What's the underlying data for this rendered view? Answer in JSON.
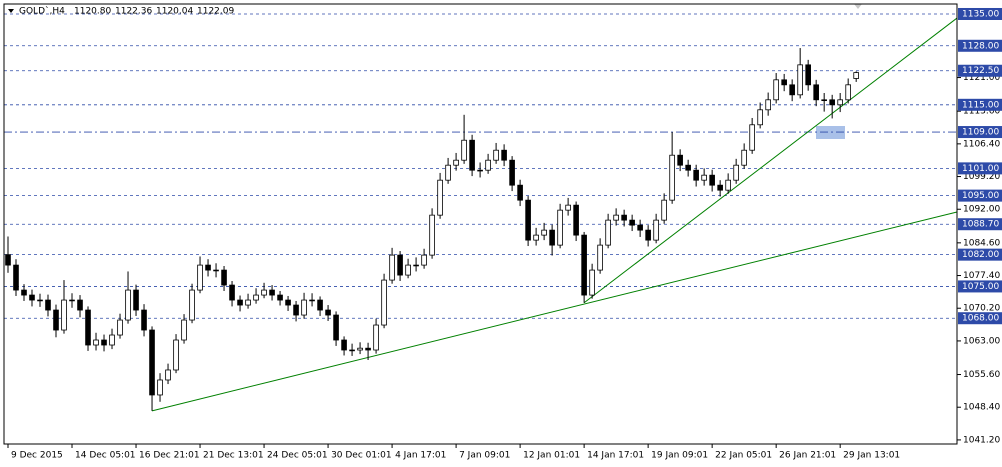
{
  "chart_data": {
    "type": "candlestick",
    "title": "GOLD`,H4",
    "last_labels": [
      "1120.80",
      "1122.36",
      "1120.04",
      "1122.09"
    ],
    "ohlc": {
      "open": [
        1082.0,
        1079.7,
        1074.2,
        1073.1,
        1072.0,
        1072.0,
        1069.8,
        1065.4,
        1072.0,
        1072.0,
        1069.8,
        1062.1,
        1063.2,
        1062.1,
        1064.3,
        1067.6,
        1074.2,
        1069.8,
        1065.4,
        1051.1,
        1054.4,
        1056.6,
        1063.2,
        1067.6,
        1074.2,
        1079.7,
        1078.6,
        1078.6,
        1075.3,
        1072.0,
        1070.9,
        1072.0,
        1073.1,
        1074.2,
        1073.1,
        1072.0,
        1070.9,
        1068.7,
        1072.0,
        1072.0,
        1069.8,
        1068.7,
        1063.2,
        1061.0,
        1061.0,
        1061.4,
        1061.0,
        1066.5,
        1076.4,
        1081.9,
        1077.5,
        1079.7,
        1079.7,
        1081.9,
        1090.7,
        1098.4,
        1101.7,
        1102.8,
        1107.2,
        1100.6,
        1100.6,
        1102.8,
        1105.0,
        1102.8,
        1097.3,
        1094.0,
        1085.2,
        1086.3,
        1087.4,
        1084.1,
        1091.8,
        1092.9,
        1086.3,
        1073.1,
        1078.6,
        1084.1,
        1089.6,
        1090.7,
        1089.6,
        1088.5,
        1087.4,
        1085.2,
        1089.6,
        1094.0,
        1103.9,
        1101.7,
        1100.6,
        1098.4,
        1099.5,
        1097.3,
        1096.2,
        1098.4,
        1101.7,
        1105.0,
        1110.6,
        1113.9,
        1116.1,
        1120.5,
        1119.4,
        1117.2,
        1123.8,
        1119.4,
        1116.1,
        1116.1,
        1115.0,
        1116.1,
        1120.8
      ],
      "high": [
        1086.0,
        1081.0,
        1075.5,
        1074.3,
        1073.4,
        1073.2,
        1071.0,
        1076.4,
        1073.5,
        1073.1,
        1070.6,
        1064.8,
        1064.4,
        1065.7,
        1069.0,
        1078.3,
        1075.4,
        1071.1,
        1066.2,
        1055.9,
        1058.0,
        1064.5,
        1068.9,
        1075.6,
        1081.6,
        1081.0,
        1080.1,
        1079.5,
        1076.2,
        1073.0,
        1073.4,
        1074.6,
        1075.8,
        1075.3,
        1074.0,
        1072.9,
        1071.8,
        1073.6,
        1073.5,
        1072.8,
        1070.9,
        1069.5,
        1064.0,
        1062.4,
        1062.7,
        1062.6,
        1067.9,
        1077.8,
        1083.5,
        1082.8,
        1081.1,
        1081.4,
        1083.3,
        1092.2,
        1100.0,
        1103.3,
        1104.4,
        1112.8,
        1108.4,
        1102.3,
        1104.2,
        1106.6,
        1106.3,
        1103.7,
        1098.5,
        1094.9,
        1087.9,
        1089.0,
        1088.6,
        1093.2,
        1094.5,
        1093.7,
        1087.0,
        1080.0,
        1085.6,
        1091.0,
        1092.2,
        1091.9,
        1090.8,
        1089.7,
        1088.5,
        1091.0,
        1095.5,
        1109.0,
        1105.2,
        1102.9,
        1101.8,
        1101.0,
        1100.7,
        1098.4,
        1099.9,
        1103.1,
        1106.5,
        1112.1,
        1115.5,
        1117.7,
        1122.0,
        1121.8,
        1120.6,
        1127.5,
        1124.9,
        1120.5,
        1117.6,
        1117.2,
        1117.6,
        1120.8,
        1122.36
      ],
      "low": [
        1078.0,
        1072.9,
        1071.8,
        1070.6,
        1070.5,
        1068.4,
        1063.8,
        1064.6,
        1070.3,
        1068.2,
        1060.8,
        1060.9,
        1060.7,
        1061.2,
        1063.5,
        1066.8,
        1068.5,
        1064.0,
        1047.6,
        1049.6,
        1053.5,
        1055.9,
        1062.4,
        1066.9,
        1073.5,
        1077.2,
        1077.0,
        1074.0,
        1070.6,
        1069.5,
        1070.1,
        1071.2,
        1072.4,
        1071.9,
        1070.8,
        1069.6,
        1067.3,
        1067.9,
        1070.6,
        1068.5,
        1067.4,
        1061.9,
        1059.8,
        1059.7,
        1060.1,
        1058.8,
        1060.2,
        1065.8,
        1075.6,
        1076.2,
        1076.8,
        1078.3,
        1078.9,
        1081.1,
        1089.9,
        1097.6,
        1100.5,
        1102.0,
        1099.3,
        1099.0,
        1099.8,
        1102.0,
        1101.5,
        1096.0,
        1092.7,
        1083.9,
        1084.0,
        1085.2,
        1081.8,
        1083.4,
        1090.6,
        1085.0,
        1071.4,
        1072.3,
        1077.8,
        1083.4,
        1088.4,
        1088.2,
        1087.2,
        1085.9,
        1083.8,
        1084.5,
        1088.8,
        1093.2,
        1100.4,
        1099.2,
        1097.0,
        1097.2,
        1095.9,
        1094.8,
        1095.4,
        1097.6,
        1100.9,
        1104.2,
        1109.8,
        1112.6,
        1115.3,
        1118.0,
        1115.8,
        1116.4,
        1118.1,
        1114.7,
        1113.5,
        1112.0,
        1113.4,
        1115.3,
        1120.04
      ],
      "close": [
        1079.7,
        1074.2,
        1073.1,
        1072.0,
        1072.0,
        1069.8,
        1065.4,
        1072.0,
        1072.0,
        1069.8,
        1062.1,
        1063.2,
        1062.1,
        1064.3,
        1067.6,
        1074.2,
        1069.8,
        1065.4,
        1051.1,
        1054.4,
        1056.6,
        1063.2,
        1067.6,
        1074.2,
        1079.7,
        1078.6,
        1078.6,
        1075.3,
        1072.0,
        1070.9,
        1072.0,
        1073.1,
        1074.2,
        1073.1,
        1072.0,
        1070.9,
        1068.7,
        1072.0,
        1072.0,
        1069.8,
        1068.7,
        1063.2,
        1061.0,
        1061.0,
        1061.4,
        1061.0,
        1066.5,
        1076.4,
        1081.9,
        1077.5,
        1079.7,
        1079.7,
        1081.9,
        1090.7,
        1098.4,
        1101.7,
        1102.8,
        1107.2,
        1100.6,
        1100.6,
        1102.8,
        1105.0,
        1102.8,
        1097.3,
        1094.0,
        1085.2,
        1086.3,
        1087.4,
        1084.1,
        1091.8,
        1092.9,
        1086.3,
        1073.1,
        1078.6,
        1084.1,
        1089.6,
        1090.7,
        1089.6,
        1088.5,
        1087.4,
        1085.2,
        1089.6,
        1094.0,
        1103.9,
        1101.7,
        1100.6,
        1098.4,
        1099.5,
        1097.3,
        1096.2,
        1098.4,
        1101.7,
        1105.0,
        1110.6,
        1113.9,
        1116.1,
        1120.5,
        1119.4,
        1117.2,
        1123.8,
        1119.4,
        1116.1,
        1116.1,
        1115.0,
        1116.1,
        1119.4,
        1122.09
      ]
    },
    "up_color": "#ffffff",
    "down_color": "#000000",
    "line_color": "#000000",
    "xlim": [
      -0.5,
      118.6
    ],
    "xticks": [
      {
        "value": 0,
        "label": "9 Dec 2015"
      },
      {
        "value": 8,
        "label": "14 Dec 05:01"
      },
      {
        "value": 16,
        "label": "16 Dec 21:01"
      },
      {
        "value": 24,
        "label": "21 Dec 13:01"
      },
      {
        "value": 32,
        "label": "24 Dec 05:01"
      },
      {
        "value": 40,
        "label": "30 Dec 01:01"
      },
      {
        "value": 48,
        "label": "4 Jan 17:01"
      },
      {
        "value": 56,
        "label": "7 Jan 09:01"
      },
      {
        "value": 64,
        "label": "12 Jan 01:01"
      },
      {
        "value": 72,
        "label": "14 Jan 17:01"
      },
      {
        "value": 80,
        "label": "19 Jan 09:01"
      },
      {
        "value": 88,
        "label": "22 Jan 05:01"
      },
      {
        "value": 96,
        "label": "26 Jan 21:01"
      },
      {
        "value": 104,
        "label": "29 Jan 13:01"
      }
    ],
    "ylim": [
      1040.3,
      1137.2
    ],
    "yticks": [
      {
        "value": 1121,
        "label": "1121.00"
      },
      {
        "value": 1113.6,
        "label": "1113.60"
      },
      {
        "value": 1106.4,
        "label": "1106.40"
      },
      {
        "value": 1099.2,
        "label": "1099.20"
      },
      {
        "value": 1092,
        "label": "1092.00"
      },
      {
        "value": 1084.6,
        "label": "1084.60"
      },
      {
        "value": 1077.4,
        "label": "1077.40"
      },
      {
        "value": 1070.2,
        "label": "1070.20"
      },
      {
        "value": 1063,
        "label": "1063.00"
      },
      {
        "value": 1055.6,
        "label": "1055.60"
      },
      {
        "value": 1048.4,
        "label": "1048.40"
      },
      {
        "value": 1041.2,
        "label": "1041.20"
      }
    ],
    "hlines": [
      {
        "value": 1135,
        "label": "1135.00",
        "style": "dash"
      },
      {
        "value": 1128,
        "label": "1128.00",
        "style": "dash"
      },
      {
        "value": 1122.5,
        "label": "1122.50",
        "style": "dash"
      },
      {
        "value": 1115,
        "label": "1115.00",
        "style": "dash"
      },
      {
        "value": 1109,
        "label": "1109.00",
        "style": "dashdot"
      },
      {
        "value": 1101,
        "label": "1101.00",
        "style": "dash"
      },
      {
        "value": 1095,
        "label": "1095.00",
        "style": "dash"
      },
      {
        "value": 1088.7,
        "label": "1088.70",
        "style": "dash"
      },
      {
        "value": 1082,
        "label": "1082.00",
        "style": "dash"
      },
      {
        "value": 1075,
        "label": "1075.00",
        "style": "dash"
      },
      {
        "value": 1068,
        "label": "1068.00",
        "style": "dash"
      }
    ],
    "hline_color": "#2d4aa8",
    "trendlines": [
      {
        "x": [
          18,
          118.6
        ],
        "y": [
          1047.6,
          1091.4
        ]
      },
      {
        "x": [
          72,
          118.6
        ],
        "y": [
          1071.4,
          1134.1
        ]
      }
    ],
    "trend_color": "#008000"
  }
}
